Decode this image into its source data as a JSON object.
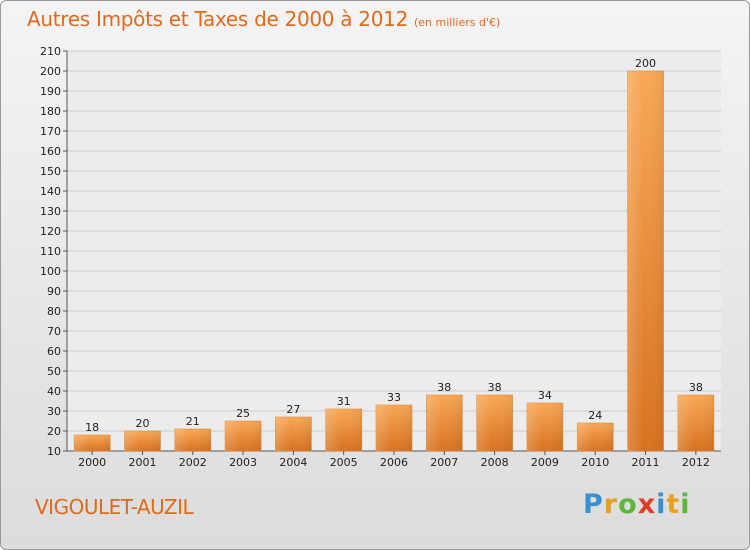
{
  "title": "Autres Impôts et Taxes de 2000 à 2012",
  "unit": "(en milliers d'€)",
  "commune": "VIGOULET-AUZIL",
  "logo": {
    "text": "Proxiti",
    "letters": [
      {
        "ch": "P",
        "color": "#3a8fd0"
      },
      {
        "ch": "r",
        "color": "#e8a020"
      },
      {
        "ch": "o",
        "color": "#5cb83a"
      },
      {
        "ch": "x",
        "color": "#e03c2a"
      },
      {
        "ch": "i",
        "color": "#3a8fd0"
      },
      {
        "ch": "t",
        "color": "#e8a020"
      },
      {
        "ch": "i",
        "color": "#5cb83a"
      }
    ]
  },
  "colors": {
    "title": "#e06a1c",
    "bar_light": "#f8a857",
    "bar_dark": "#d8721f",
    "grid": "#cccccc"
  },
  "chart_data": {
    "type": "bar",
    "title": "Autres Impôts et Taxes de 2000 à 2012",
    "xlabel": "",
    "ylabel": "",
    "categories": [
      "2000",
      "2001",
      "2002",
      "2003",
      "2004",
      "2005",
      "2006",
      "2007",
      "2008",
      "2009",
      "2010",
      "2011",
      "2012"
    ],
    "values": [
      18,
      20,
      21,
      25,
      27,
      31,
      33,
      38,
      38,
      34,
      24,
      200,
      38
    ],
    "ylim": [
      10,
      210
    ],
    "yticks": [
      10,
      20,
      30,
      40,
      50,
      60,
      70,
      80,
      90,
      100,
      110,
      120,
      130,
      140,
      150,
      160,
      170,
      180,
      190,
      200,
      210
    ],
    "grid": true,
    "legend": "none"
  }
}
